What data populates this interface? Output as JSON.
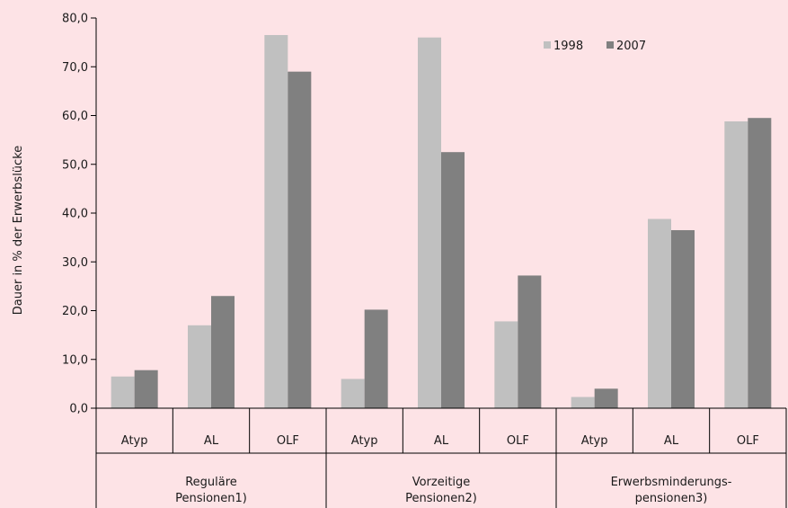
{
  "chart_data": {
    "type": "bar",
    "ylabel": "Dauer in % der Erwerbslücke",
    "ylim": [
      0,
      80
    ],
    "yticks": [
      "0,0",
      "10,0",
      "20,0",
      "30,0",
      "40,0",
      "50,0",
      "60,0",
      "70,0",
      "80,0"
    ],
    "legend_position": "top-right",
    "groups": [
      {
        "label_lines": [
          "Reguläre",
          "Pensionen1)"
        ],
        "categories": [
          "Atyp",
          "AL",
          "OLF"
        ]
      },
      {
        "label_lines": [
          "Vorzeitige",
          "Pensionen2)"
        ],
        "categories": [
          "Atyp",
          "AL",
          "OLF"
        ]
      },
      {
        "label_lines": [
          "Erwerbsminderungs-",
          "pensionen3)"
        ],
        "categories": [
          "Atyp",
          "AL",
          "OLF"
        ]
      }
    ],
    "series": [
      {
        "name": "1998",
        "color": "#c0c0c0",
        "values": [
          6.5,
          17.0,
          76.5,
          6.0,
          76.0,
          17.8,
          2.3,
          38.8,
          58.8
        ]
      },
      {
        "name": "2007",
        "color": "#808080",
        "values": [
          7.8,
          23.0,
          69.0,
          20.2,
          52.5,
          27.2,
          4.0,
          36.5,
          59.5
        ]
      }
    ]
  }
}
